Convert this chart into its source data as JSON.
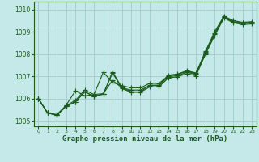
{
  "xlabel": "Graphe pression niveau de la mer (hPa)",
  "background_color": "#c5e8e8",
  "grid_color": "#a0cccc",
  "line_color": "#1a5c1a",
  "ylim": [
    1004.75,
    1010.35
  ],
  "xlim": [
    -0.5,
    23.5
  ],
  "yticks": [
    1005,
    1006,
    1007,
    1008,
    1009,
    1010
  ],
  "xticks": [
    0,
    1,
    2,
    3,
    4,
    5,
    6,
    7,
    8,
    9,
    10,
    11,
    12,
    13,
    14,
    15,
    16,
    17,
    18,
    19,
    20,
    21,
    22,
    23
  ],
  "series": [
    [
      1006.0,
      1005.35,
      1005.25,
      1005.65,
      1005.85,
      1006.3,
      1006.1,
      1006.2,
      1007.2,
      1006.5,
      1006.3,
      1006.3,
      1006.6,
      1006.6,
      1007.05,
      1007.1,
      1007.25,
      1007.15,
      1008.1,
      1009.0,
      1009.7,
      1009.5,
      1009.42,
      1009.45
    ],
    [
      1006.0,
      1005.35,
      1005.25,
      1005.65,
      1005.85,
      1006.3,
      1006.1,
      1006.2,
      1007.15,
      1006.45,
      1006.28,
      1006.28,
      1006.52,
      1006.52,
      1006.92,
      1006.98,
      1007.12,
      1007.02,
      1008.02,
      1008.88,
      1009.65,
      1009.43,
      1009.37,
      1009.4
    ],
    [
      1006.0,
      1005.35,
      1005.25,
      1005.7,
      1006.35,
      1006.12,
      1006.18,
      1006.22,
      1006.82,
      1006.48,
      1006.38,
      1006.38,
      1006.58,
      1006.58,
      1006.98,
      1007.03,
      1007.18,
      1007.08,
      1007.98,
      1008.82,
      1009.62,
      1009.4,
      1009.32,
      1009.35
    ],
    [
      1006.0,
      1005.35,
      1005.28,
      1005.68,
      1005.92,
      1006.38,
      1006.18,
      1007.18,
      1006.72,
      1006.58,
      1006.48,
      1006.48,
      1006.68,
      1006.68,
      1007.02,
      1007.08,
      1007.22,
      1007.12,
      1008.12,
      1008.92,
      1009.67,
      1009.45,
      1009.4,
      1009.42
    ]
  ],
  "marker": "+",
  "markersize": 4,
  "linewidth": 0.8
}
